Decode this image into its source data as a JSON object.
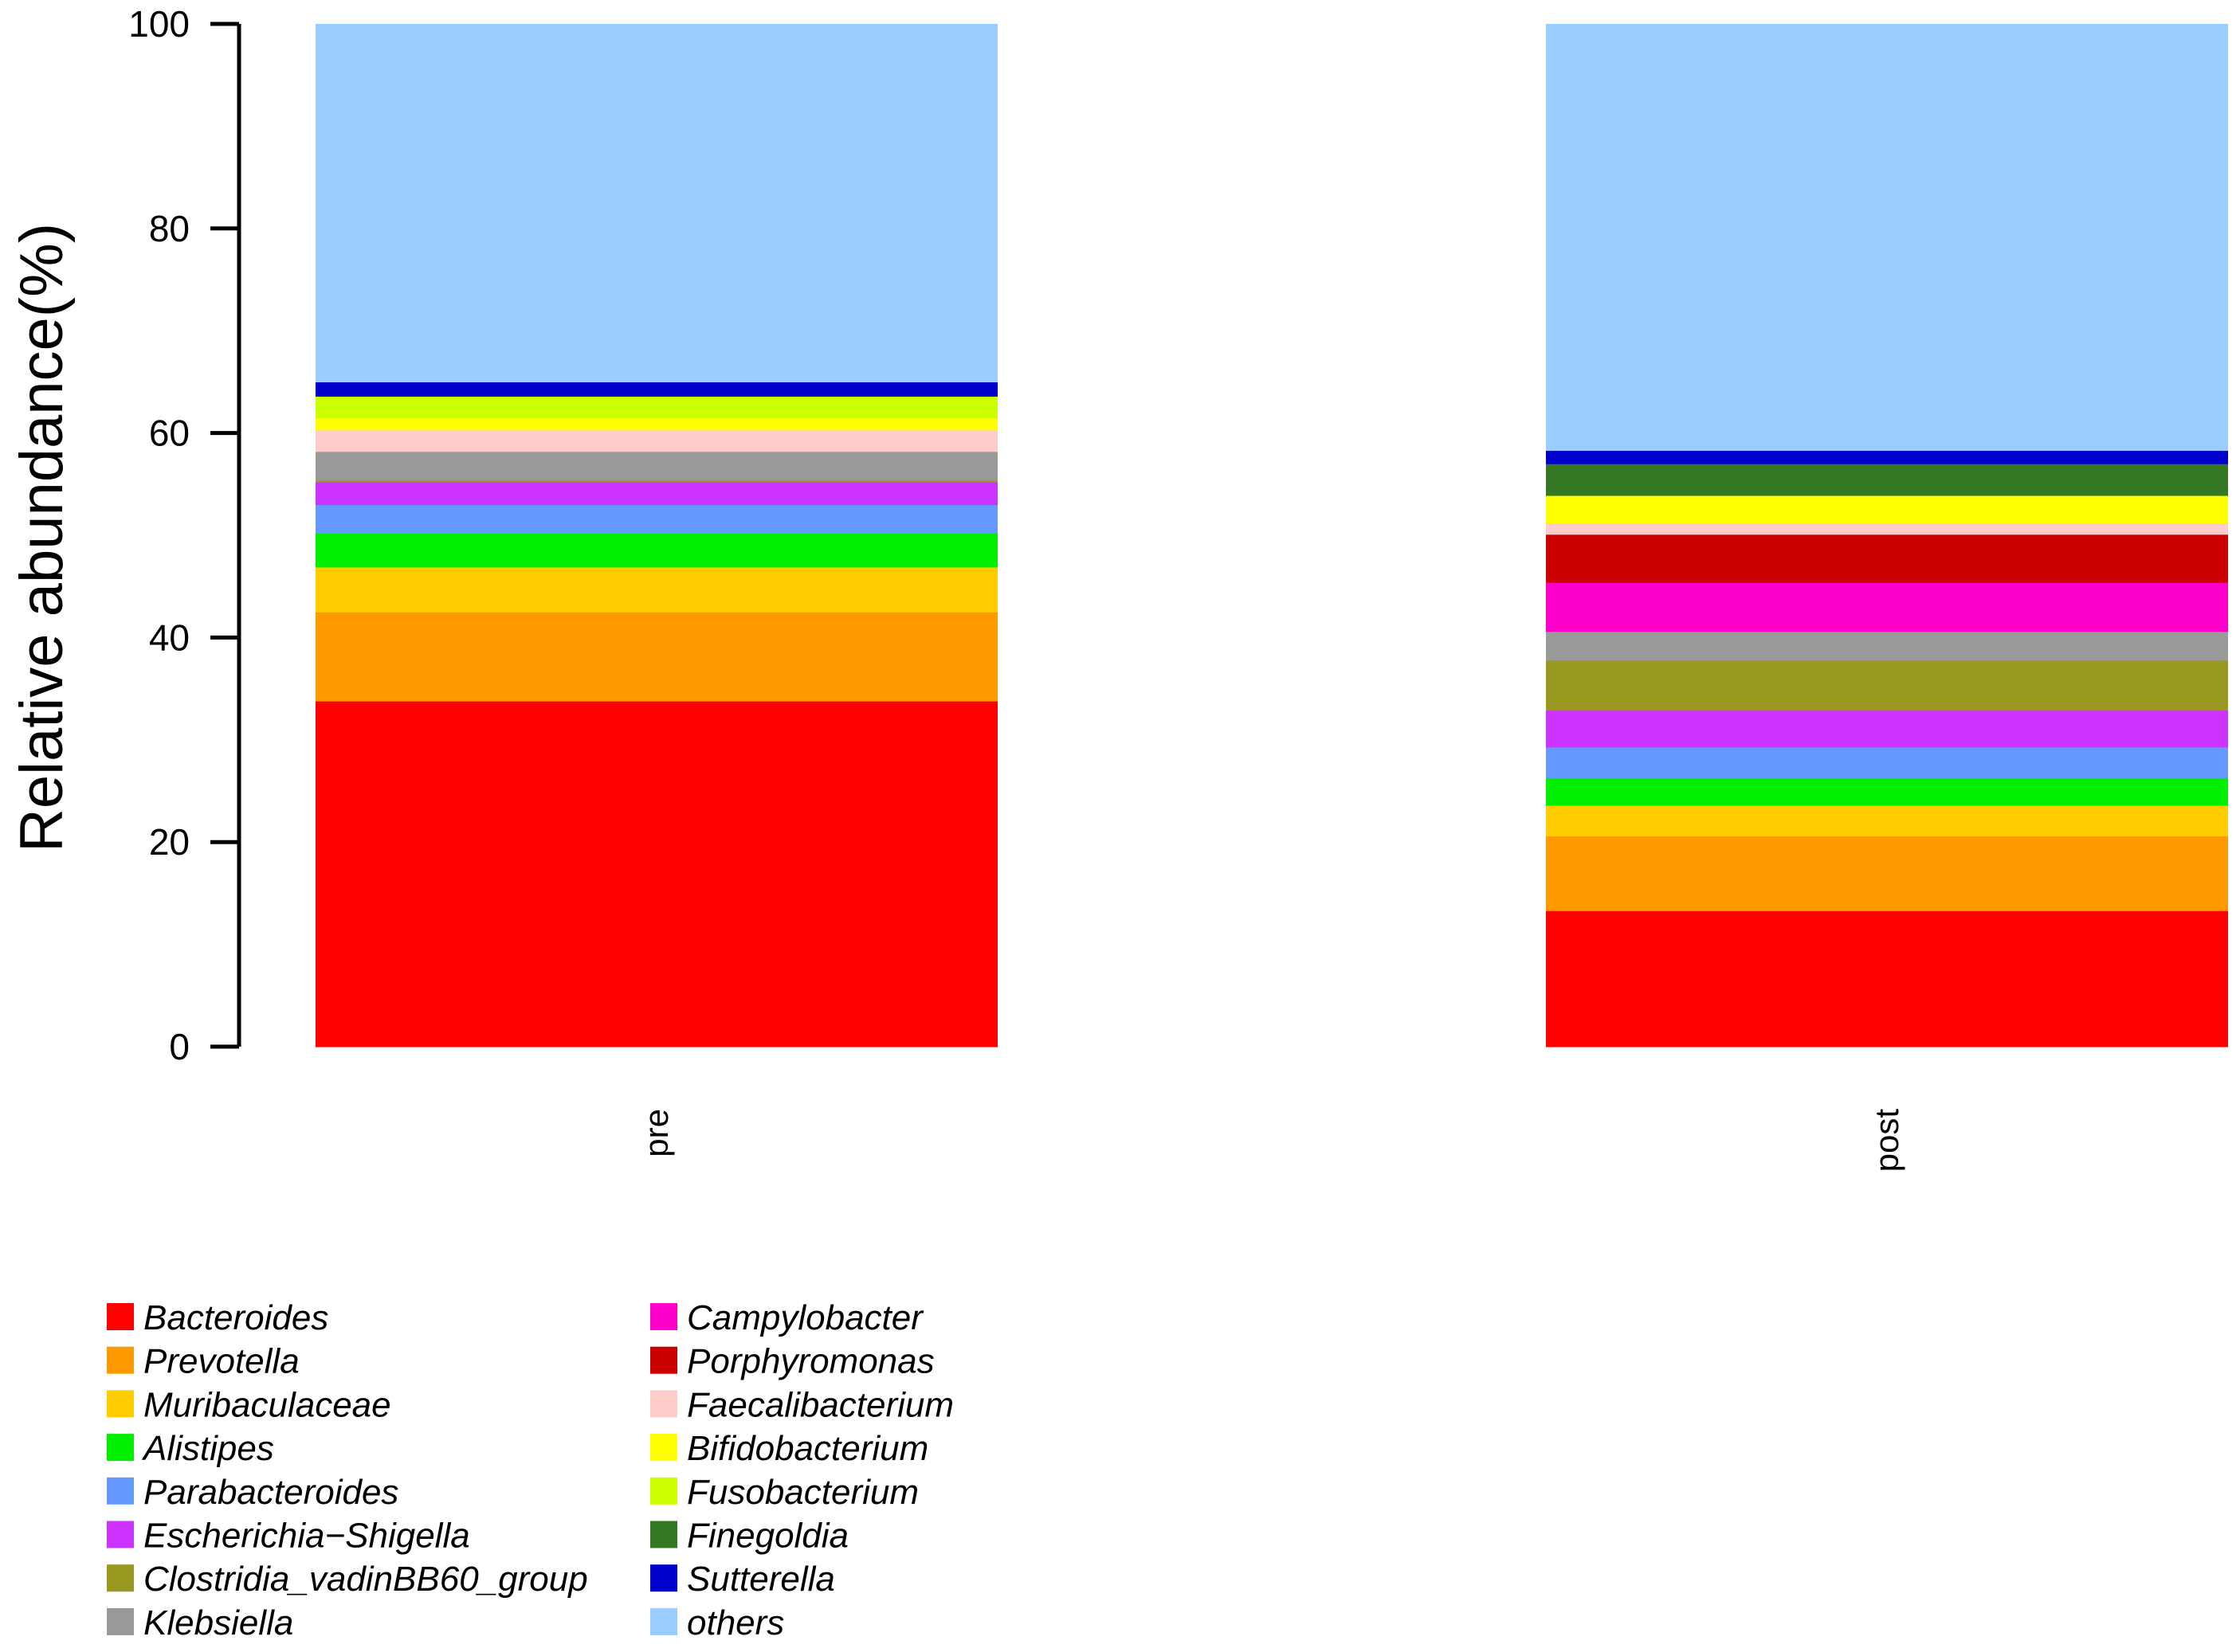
{
  "chart_data": {
    "type": "bar",
    "stacked": true,
    "title": "",
    "xlabel": "",
    "ylabel": "Relative abundance(%)",
    "ylim": [
      0,
      100
    ],
    "yticks": [
      "0",
      "20",
      "40",
      "60",
      "80",
      "100"
    ],
    "grid": false,
    "legend_position": "bottom-left",
    "categories": [
      "pre",
      "post"
    ],
    "series": [
      {
        "name": "Bacteroides",
        "color": "#ff0000",
        "values": [
          33.8,
          13.3
        ]
      },
      {
        "name": "Prevotella",
        "color": "#ff9900",
        "values": [
          8.7,
          7.3
        ]
      },
      {
        "name": "Muribaculaceae",
        "color": "#ffcc00",
        "values": [
          4.4,
          3.0
        ]
      },
      {
        "name": "Alistipes",
        "color": "#00ee00",
        "values": [
          3.3,
          2.7
        ]
      },
      {
        "name": "Parabacteroides",
        "color": "#6699ff",
        "values": [
          2.8,
          3.0
        ]
      },
      {
        "name": "Escherichia−Shigella",
        "color": "#cc33ff",
        "values": [
          2.2,
          3.6
        ]
      },
      {
        "name": "Clostridia_vadinBB60_group",
        "color": "#999922",
        "values": [
          0.2,
          4.9
        ]
      },
      {
        "name": "Klebsiella",
        "color": "#999999",
        "values": [
          2.8,
          2.8
        ]
      },
      {
        "name": "Campylobacter",
        "color": "#ff00cc",
        "values": [
          0.0,
          4.8
        ]
      },
      {
        "name": "Porphyromonas",
        "color": "#cc0000",
        "values": [
          0.0,
          4.7
        ]
      },
      {
        "name": "Faecalibacterium",
        "color": "#ffcccc",
        "values": [
          2.1,
          1.1
        ]
      },
      {
        "name": "Bifidobacterium",
        "color": "#ffff00",
        "values": [
          1.2,
          2.7
        ]
      },
      {
        "name": "Fusobacterium",
        "color": "#ccff00",
        "values": [
          2.1,
          0.0
        ]
      },
      {
        "name": "Finegoldia",
        "color": "#337722",
        "values": [
          0.0,
          3.1
        ]
      },
      {
        "name": "Sutterella",
        "color": "#0000cc",
        "values": [
          1.4,
          1.3
        ]
      },
      {
        "name": "others",
        "color": "#99ccff",
        "values": [
          35.0,
          41.7
        ]
      }
    ]
  }
}
